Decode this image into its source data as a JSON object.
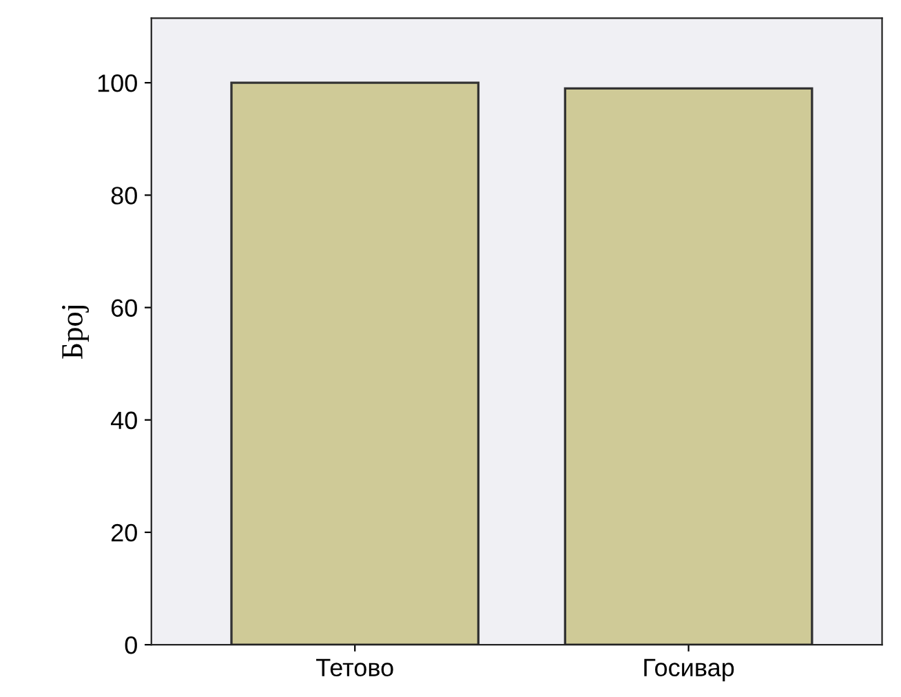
{
  "chart_data": {
    "type": "bar",
    "ylabel": "Број",
    "categories": [
      "Тетово",
      "Госивар"
    ],
    "values": [
      100,
      99
    ],
    "color": "#cfca97",
    "ylim": [
      0,
      111.5
    ],
    "yticks": [
      0,
      20,
      40,
      60,
      80,
      100
    ],
    "grid": false
  }
}
